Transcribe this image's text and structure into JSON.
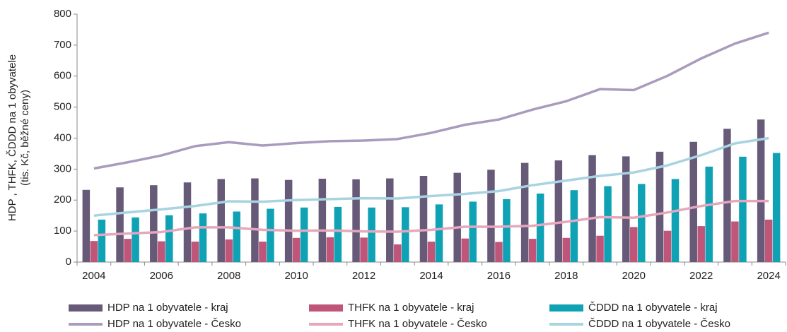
{
  "chart_data": {
    "type": "bar",
    "ylabel": [
      "HDP , THFK, ČDDD na 1 obyvatele",
      "(tis. Kč, běžné ceny)"
    ],
    "categories": [
      "2004",
      null,
      "2006",
      null,
      "2008",
      null,
      "2010",
      null,
      "2012",
      null,
      "2014",
      null,
      "2016",
      null,
      "2018",
      null,
      "2020",
      null,
      "2022",
      null,
      "2024"
    ],
    "ylim": [
      0,
      800
    ],
    "yticks": [
      0,
      100,
      200,
      300,
      400,
      500,
      600,
      700,
      800
    ],
    "grid": false,
    "legend": "bottom",
    "series": [
      {
        "name": "HDP na 1 obyvatele - kraj",
        "type": "bar",
        "color": "#665a78",
        "values": [
          233,
          241,
          248,
          257,
          268,
          270,
          265,
          269,
          267,
          270,
          278,
          288,
          298,
          320,
          328,
          345,
          341,
          356,
          388,
          430,
          460
        ]
      },
      {
        "name": "THFK na 1 obyvatele - kraj",
        "type": "bar",
        "color": "#c0557a",
        "values": [
          68,
          75,
          67,
          66,
          73,
          66,
          78,
          80,
          79,
          57,
          66,
          76,
          65,
          75,
          78,
          85,
          113,
          101,
          116,
          131,
          137
        ]
      },
      {
        "name": "ČDDD na 1 obyvatele - kraj",
        "type": "bar",
        "color": "#0ea2b4",
        "values": [
          137,
          144,
          151,
          157,
          163,
          172,
          176,
          178,
          176,
          177,
          186,
          195,
          203,
          221,
          232,
          245,
          252,
          268,
          308,
          340,
          352
        ]
      },
      {
        "name": "HDP na 1 obyvatele - Česko",
        "type": "line",
        "color": "#a99bbd",
        "values": [
          302,
          322,
          344,
          374,
          387,
          376,
          384,
          390,
          392,
          397,
          417,
          443,
          460,
          492,
          519,
          558,
          555,
          601,
          657,
          705,
          740
        ]
      },
      {
        "name": "THFK na 1 obyvatele - Česko",
        "type": "line",
        "color": "#e6a7bd",
        "values": [
          87,
          92,
          97,
          112,
          112,
          104,
          101,
          102,
          99,
          98,
          104,
          114,
          114,
          117,
          130,
          145,
          143,
          160,
          181,
          197,
          197
        ]
      },
      {
        "name": "ČDDD na 1 obyvatele - Česko",
        "type": "line",
        "color": "#a8d3e0",
        "values": [
          150,
          160,
          170,
          181,
          196,
          195,
          200,
          203,
          206,
          205,
          213,
          220,
          229,
          248,
          263,
          278,
          289,
          312,
          345,
          383,
          400
        ]
      }
    ]
  }
}
